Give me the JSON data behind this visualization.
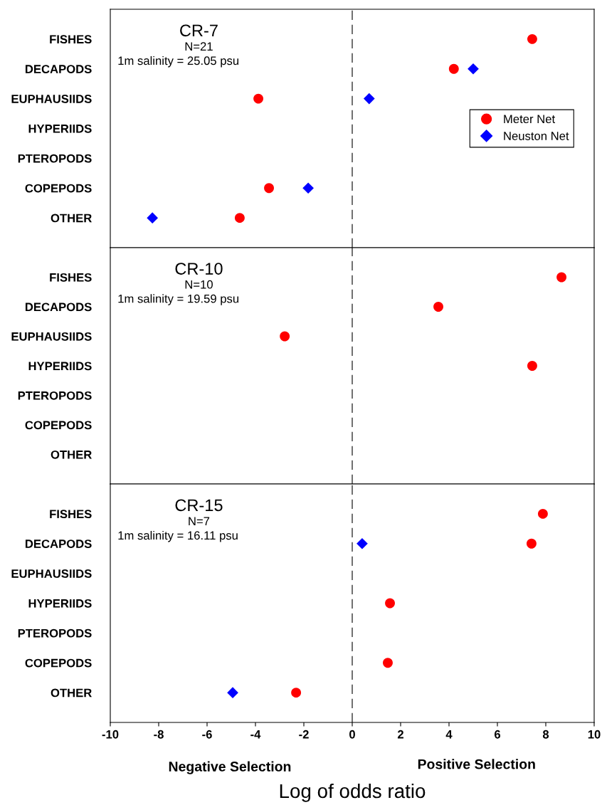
{
  "chart_data": [
    {
      "type": "scatter",
      "title": "CR-7",
      "subtitle": "N=21",
      "annotations": [
        "1m salinity = 25.05 psu"
      ],
      "categories": [
        "FISHES",
        "DECAPODS",
        "EUPHAUSIIDS",
        "HYPERIIDS",
        "PTEROPODS",
        "COPEPODS",
        "OTHER"
      ],
      "orientation": "horizontal",
      "series": [
        {
          "name": "Meter Net",
          "color": "#ff0000",
          "marker": "circle",
          "values": [
            7.44,
            4.2,
            -3.88,
            null,
            null,
            -3.44,
            -4.65
          ]
        },
        {
          "name": "Neuston Net",
          "color": "#0000ff",
          "marker": "diamond",
          "values": [
            null,
            5.0,
            0.7,
            null,
            null,
            -1.82,
            -8.26
          ]
        }
      ],
      "xlim": [
        -10,
        10
      ],
      "xticks": [
        -10,
        -8,
        -6,
        -4,
        -2,
        0,
        2,
        4,
        6,
        8,
        10
      ],
      "tick_labels": "y",
      "ref_lines": [
        {
          "axis": "x",
          "value": 0,
          "line_style": "dashed",
          "color": "#000000"
        }
      ],
      "legend": "right",
      "grid": false
    },
    {
      "type": "scatter",
      "title": "CR-10",
      "subtitle": "N=10",
      "annotations": [
        "1m salinity = 19.59 psu"
      ],
      "categories": [
        "FISHES",
        "DECAPODS",
        "EUPHAUSIIDS",
        "HYPERIIDS",
        "PTEROPODS",
        "COPEPODS",
        "OTHER"
      ],
      "orientation": "horizontal",
      "series": [
        {
          "color": "#ff0000",
          "marker": "circle",
          "values": [
            8.65,
            3.56,
            -2.79,
            7.44,
            null,
            null,
            null
          ]
        }
      ],
      "xlim": [
        -10,
        10
      ],
      "xticks": [
        -10,
        -8,
        -6,
        -4,
        -2,
        0,
        2,
        4,
        6,
        8,
        10
      ],
      "tick_labels": "y",
      "ref_lines": [
        {
          "axis": "x",
          "value": 0,
          "line_style": "dashed",
          "color": "#000000"
        }
      ],
      "legend": false,
      "grid": false
    },
    {
      "type": "scatter",
      "title": "CR-15",
      "subtitle": "N=7",
      "annotations": [
        "1m salinity = 16.11 psu",
        "Negative Selection",
        "Positive Selection"
      ],
      "xlabel": "Log of odds ratio",
      "categories": [
        "FISHES",
        "DECAPODS",
        "EUPHAUSIIDS",
        "HYPERIIDS",
        "PTEROPODS",
        "COPEPODS",
        "OTHER"
      ],
      "orientation": "horizontal",
      "series": [
        {
          "color": "#ff0000",
          "marker": "circle",
          "values": [
            7.88,
            7.41,
            null,
            1.56,
            null,
            1.47,
            -2.32
          ]
        },
        {
          "color": "#0000ff",
          "marker": "diamond",
          "values": [
            null,
            0.41,
            null,
            null,
            null,
            null,
            -4.94
          ]
        }
      ],
      "xlim": [
        -10,
        10
      ],
      "xticks": [
        -10,
        -8,
        -6,
        -4,
        -2,
        0,
        2,
        4,
        6,
        8,
        10
      ],
      "ref_lines": [
        {
          "axis": "x",
          "value": 0,
          "line_style": "dashed",
          "color": "#000000"
        }
      ],
      "legend": false,
      "grid": false
    }
  ]
}
